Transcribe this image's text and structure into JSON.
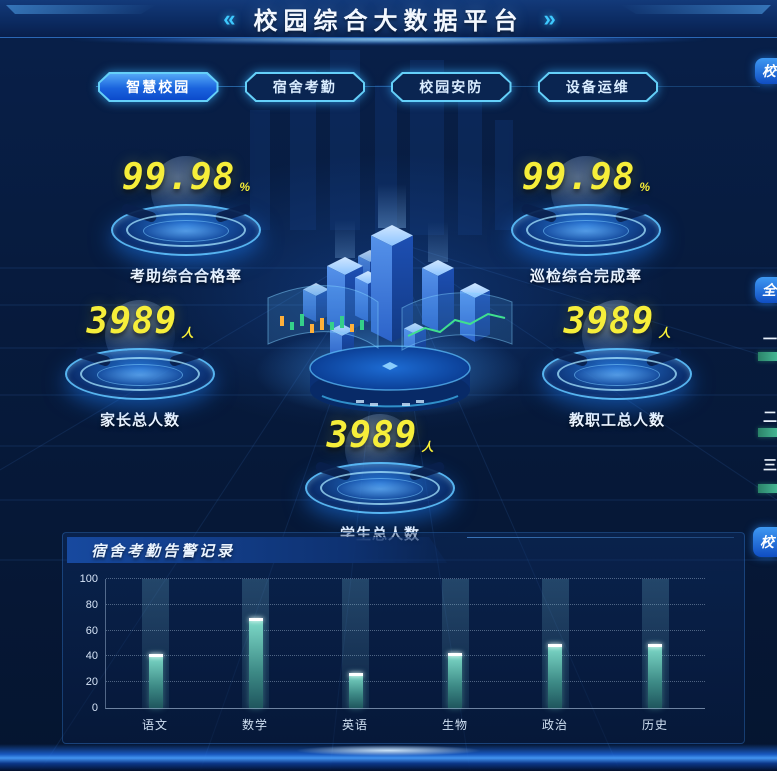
{
  "header": {
    "title": "校园综合大数据平台",
    "left_arrows": "«",
    "right_arrows": "»"
  },
  "tabs": [
    {
      "label": "智慧校园",
      "active": true
    },
    {
      "label": "宿舍考勤",
      "active": false
    },
    {
      "label": "校园安防",
      "active": false
    },
    {
      "label": "设备运维",
      "active": false
    }
  ],
  "stats": [
    {
      "value": "99.98",
      "unit": "%",
      "label": "考助综合合格率"
    },
    {
      "value": "99.98",
      "unit": "%",
      "label": "巡检综合完成率"
    },
    {
      "value": "3989",
      "unit": "人",
      "label": "家长总人数"
    },
    {
      "value": "3989",
      "unit": "人",
      "label": "教职工总人数"
    },
    {
      "value": "3989",
      "unit": "人",
      "label": "学生总人数"
    }
  ],
  "alarm_panel": {
    "title": "宿舍考勤告警记录"
  },
  "chart_data": {
    "type": "bar",
    "title": "宿舍考勤告警记录",
    "categories": [
      "语文",
      "数学",
      "英语",
      "生物",
      "政治",
      "历史"
    ],
    "values": [
      42,
      70,
      27,
      43,
      50,
      50
    ],
    "xlabel": "",
    "ylabel": "",
    "ylim": [
      0,
      100
    ],
    "yticks": [
      0,
      20,
      40,
      60,
      80,
      100
    ],
    "grid": "dotted-horizontal",
    "legend": "none",
    "bar_color": "#6fd8c9"
  },
  "right_edge": {
    "top_tab": "校",
    "mid_tab": "全",
    "ranks": [
      "一",
      "二",
      "三"
    ],
    "bottom_tab": "校"
  },
  "colors": {
    "accent_cyan": "#3ec9ff",
    "value_yellow": "#f6ee3a",
    "bar_teal": "#6fd8c9",
    "badge_green": "#3aa57e",
    "tab_active_blue": "#2d8cf0",
    "background_navy": "#071b3e"
  }
}
